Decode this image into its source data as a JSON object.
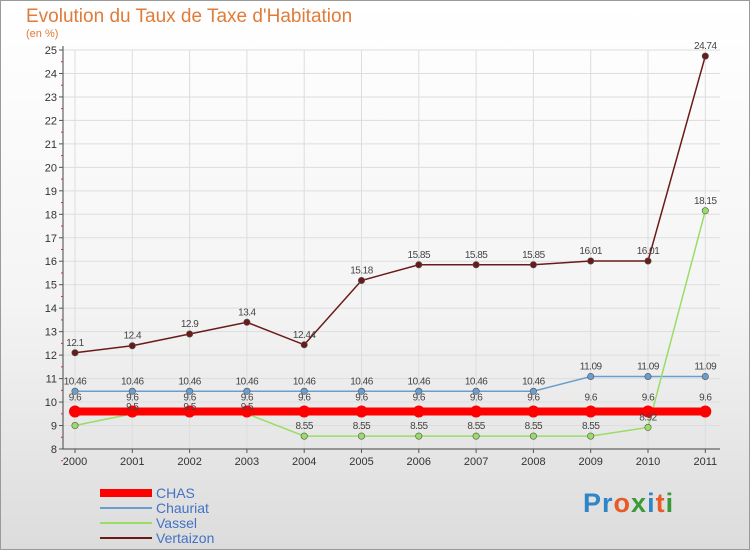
{
  "title": "Evolution du Taux de Taxe d'Habitation",
  "subtitle": "(en %)",
  "logo": {
    "text": "Proxiti",
    "colors": [
      "#2e86c8",
      "#2e86c8",
      "#e85a28",
      "#3a9a3a",
      "#2e86c8",
      "#e85a28",
      "#3a9a3a"
    ]
  },
  "chart_data": {
    "type": "line",
    "x": [
      "2000",
      "2001",
      "2002",
      "2003",
      "2004",
      "2005",
      "2006",
      "2007",
      "2008",
      "2009",
      "2010",
      "2011"
    ],
    "ylim": [
      8,
      25
    ],
    "yticks": [
      8,
      9,
      10,
      11,
      12,
      13,
      14,
      15,
      16,
      17,
      18,
      19,
      20,
      21,
      22,
      23,
      24,
      25
    ],
    "legend": "bottom-left",
    "series": [
      {
        "name": "CHAS",
        "color": "#ff0000",
        "values": [
          9.6,
          9.6,
          9.6,
          9.6,
          9.6,
          9.6,
          9.6,
          9.6,
          9.6,
          9.6,
          9.6,
          9.6
        ],
        "labels": [
          "9.6",
          "9.6",
          "9.6",
          "9.6",
          "9.6",
          "9.6",
          "9.6",
          "9.6",
          "9.6",
          "9.6",
          "9.6",
          "9.6"
        ]
      },
      {
        "name": "Chauriat",
        "color": "#6a9ecf",
        "values": [
          10.46,
          10.46,
          10.46,
          10.46,
          10.46,
          10.46,
          10.46,
          10.46,
          10.46,
          11.09,
          11.09,
          11.09
        ],
        "labels": [
          "10.46",
          "10.46",
          "10.46",
          "10.46",
          "10.46",
          "10.46",
          "10.46",
          "10.46",
          "10.46",
          "11.09",
          "11.09",
          "11.09"
        ]
      },
      {
        "name": "Vassel",
        "color": "#99dd66",
        "values": [
          9.0,
          9.5,
          9.5,
          9.5,
          8.55,
          8.55,
          8.55,
          8.55,
          8.55,
          8.55,
          8.92,
          18.15
        ],
        "labels": [
          "",
          "9.5",
          "9.5",
          "9.5",
          "8.55",
          "8.55",
          "8.55",
          "8.55",
          "8.55",
          "8.55",
          "8.92",
          "18.15"
        ]
      },
      {
        "name": "Vertaizon",
        "color": "#6b1a1a",
        "values": [
          12.1,
          12.4,
          12.9,
          13.4,
          12.44,
          15.18,
          15.85,
          15.85,
          15.85,
          16.01,
          16.01,
          24.74
        ],
        "labels": [
          "12.1",
          "12.4",
          "12.9",
          "13.4",
          "12.44",
          "15.18",
          "15.85",
          "15.85",
          "15.85",
          "16.01",
          "16.01",
          "24.74"
        ]
      }
    ]
  }
}
